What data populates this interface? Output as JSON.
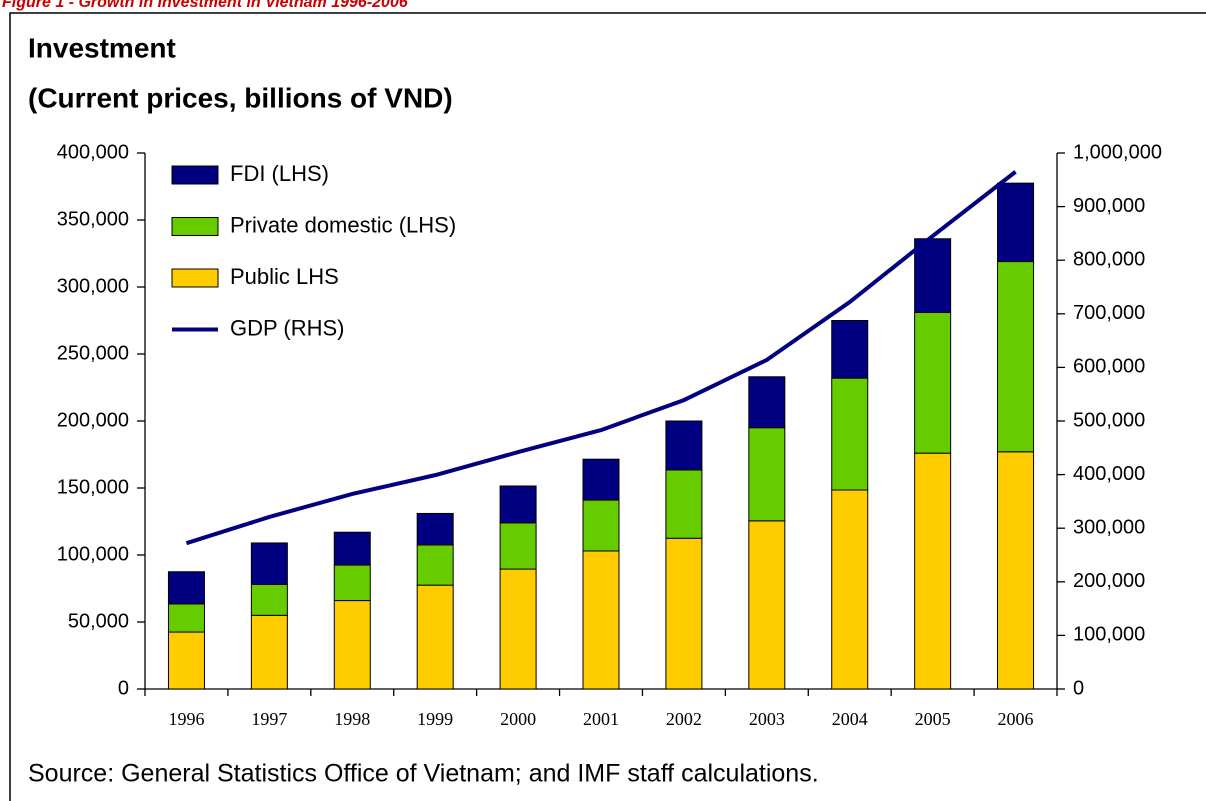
{
  "caption": "Figure 1 - Growth in Investment in Vietnam 1996-2006",
  "chart_data": {
    "type": "stacked-bar-line",
    "title": [
      "Investment",
      "(Current prices, billions of VND)"
    ],
    "source": "Source: General Statistics Office of Vietnam; and IMF staff calculations.",
    "categories": [
      "1996",
      "1997",
      "1998",
      "1999",
      "2000",
      "2001",
      "2002",
      "2003",
      "2004",
      "2005",
      "2006"
    ],
    "series": [
      {
        "name": "FDI (LHS)",
        "color": "#000080",
        "kind": "bar",
        "values": [
          24000,
          31000,
          24500,
          23500,
          27500,
          30500,
          36500,
          38000,
          43000,
          55000,
          58500
        ]
      },
      {
        "name": "Private domestic (LHS)",
        "color": "#66cc00",
        "kind": "bar",
        "values": [
          21000,
          23000,
          26500,
          30000,
          34500,
          38000,
          51000,
          69500,
          83500,
          105000,
          142000
        ]
      },
      {
        "name": "Public LHS",
        "color": "#ffcc00",
        "kind": "bar",
        "values": [
          42500,
          55000,
          66000,
          77500,
          89500,
          103000,
          112500,
          125500,
          148500,
          176000,
          177000
        ]
      },
      {
        "name": "GDP (RHS)",
        "color": "#000080",
        "kind": "line",
        "axis": "y2",
        "values": [
          272000,
          321000,
          364000,
          399000,
          442000,
          483000,
          539000,
          614000,
          722000,
          845000,
          965000
        ]
      }
    ],
    "ylim": [
      0,
      400000
    ],
    "yticks": [
      0,
      {
        "value": 50000,
        "label": "50,000"
      },
      {
        "value": 100000,
        "label": "100,000"
      },
      {
        "value": 150000,
        "label": "150,000"
      },
      {
        "value": 200000,
        "label": "200,000"
      },
      {
        "value": 250000,
        "label": "250,000"
      },
      {
        "value": 300000,
        "label": "300,000"
      },
      {
        "value": 350000,
        "label": "350,000"
      },
      {
        "value": 400000,
        "label": "400,000"
      }
    ],
    "y2lim": [
      0,
      1000000
    ],
    "y2ticks": [
      0,
      {
        "value": 100000,
        "label": "100,000"
      },
      {
        "value": 200000,
        "label": "200,000"
      },
      {
        "value": 300000,
        "label": "300,000"
      },
      {
        "value": 400000,
        "label": "400,000"
      },
      {
        "value": 500000,
        "label": "500,000"
      },
      {
        "value": 600000,
        "label": "600,000"
      },
      {
        "value": 700000,
        "label": "700,000"
      },
      {
        "value": 800000,
        "label": "800,000"
      },
      {
        "value": 900000,
        "label": "900,000"
      },
      {
        "value": 1000000,
        "label": "1,000,000"
      }
    ]
  }
}
